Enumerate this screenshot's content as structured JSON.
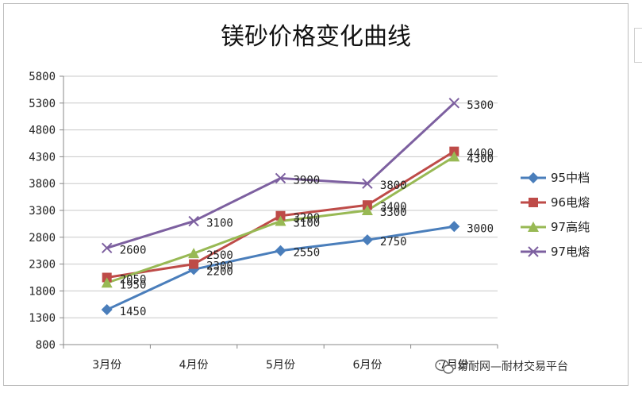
{
  "chart_data": {
    "type": "line",
    "title": "镁砂价格变化曲线",
    "categories": [
      "3月份",
      "4月份",
      "5月份",
      "6月份",
      "7月份"
    ],
    "ylim": [
      800,
      5800
    ],
    "yticks": [
      800,
      1300,
      1800,
      2300,
      2800,
      3300,
      3800,
      4300,
      4800,
      5300,
      5800
    ],
    "grid": true,
    "legend_position": "right",
    "series": [
      {
        "name": "95中档",
        "values": [
          1450,
          2200,
          2550,
          2750,
          3000
        ],
        "labels": [
          "1450",
          "2200",
          "2550",
          "2750",
          "3000"
        ],
        "color": "#4a7ebb",
        "marker": "diamond"
      },
      {
        "name": "96电熔",
        "values": [
          2050,
          2300,
          3200,
          3400,
          4400
        ],
        "labels": [
          "2050",
          "2300",
          "3200",
          "3400",
          "4400"
        ],
        "color": "#be4b48",
        "marker": "square"
      },
      {
        "name": "97高纯",
        "values": [
          1950,
          2500,
          3100,
          3300,
          4300
        ],
        "labels": [
          "1950",
          "2500",
          "3100",
          "3300",
          "4300"
        ],
        "color": "#98b954",
        "marker": "triangle"
      },
      {
        "name": "97电熔",
        "values": [
          2600,
          3100,
          3900,
          3800,
          5300
        ],
        "labels": [
          "2600",
          "3100",
          "3900",
          "3800",
          "5300"
        ],
        "color": "#7d60a0",
        "marker": "x"
      }
    ]
  },
  "watermark": {
    "text": "易耐网—耐材交易平台",
    "icon": "wechat-icon"
  }
}
